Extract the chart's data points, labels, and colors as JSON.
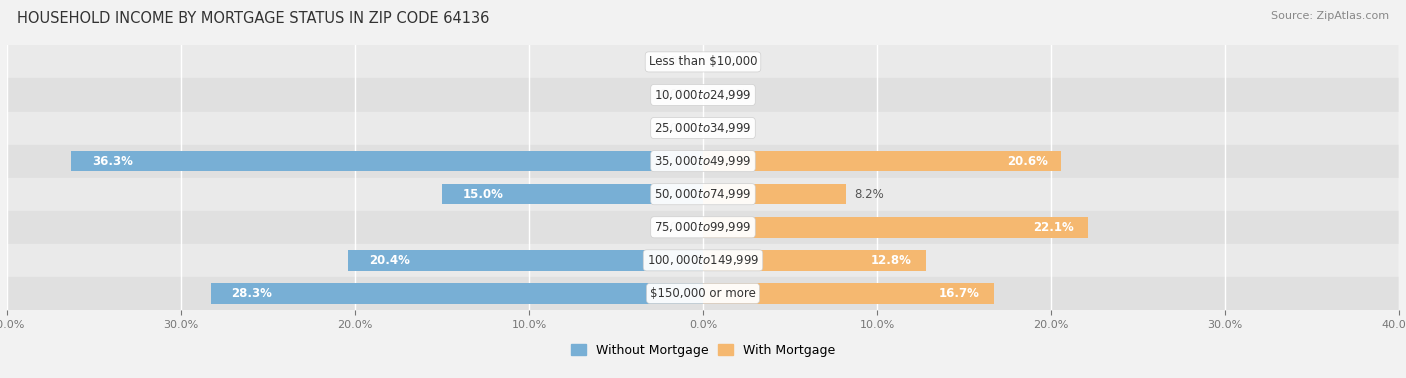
{
  "title": "HOUSEHOLD INCOME BY MORTGAGE STATUS IN ZIP CODE 64136",
  "source": "Source: ZipAtlas.com",
  "categories": [
    "Less than $10,000",
    "$10,000 to $24,999",
    "$25,000 to $34,999",
    "$35,000 to $49,999",
    "$50,000 to $74,999",
    "$75,000 to $99,999",
    "$100,000 to $149,999",
    "$150,000 or more"
  ],
  "without_mortgage": [
    0.0,
    0.0,
    0.0,
    36.3,
    15.0,
    0.0,
    20.4,
    28.3
  ],
  "with_mortgage": [
    0.0,
    0.0,
    0.0,
    20.6,
    8.2,
    22.1,
    12.8,
    16.7
  ],
  "color_without": "#78afd5",
  "color_with": "#f5b870",
  "axis_max": 40.0,
  "bg_color": "#f2f2f2",
  "row_light": "#eaeaea",
  "row_dark": "#e0e0e0",
  "title_fontsize": 10.5,
  "source_fontsize": 8,
  "label_fontsize": 8.5,
  "category_fontsize": 8.5,
  "bar_height": 0.62,
  "legend_label_without": "Without Mortgage",
  "legend_label_with": "With Mortgage"
}
